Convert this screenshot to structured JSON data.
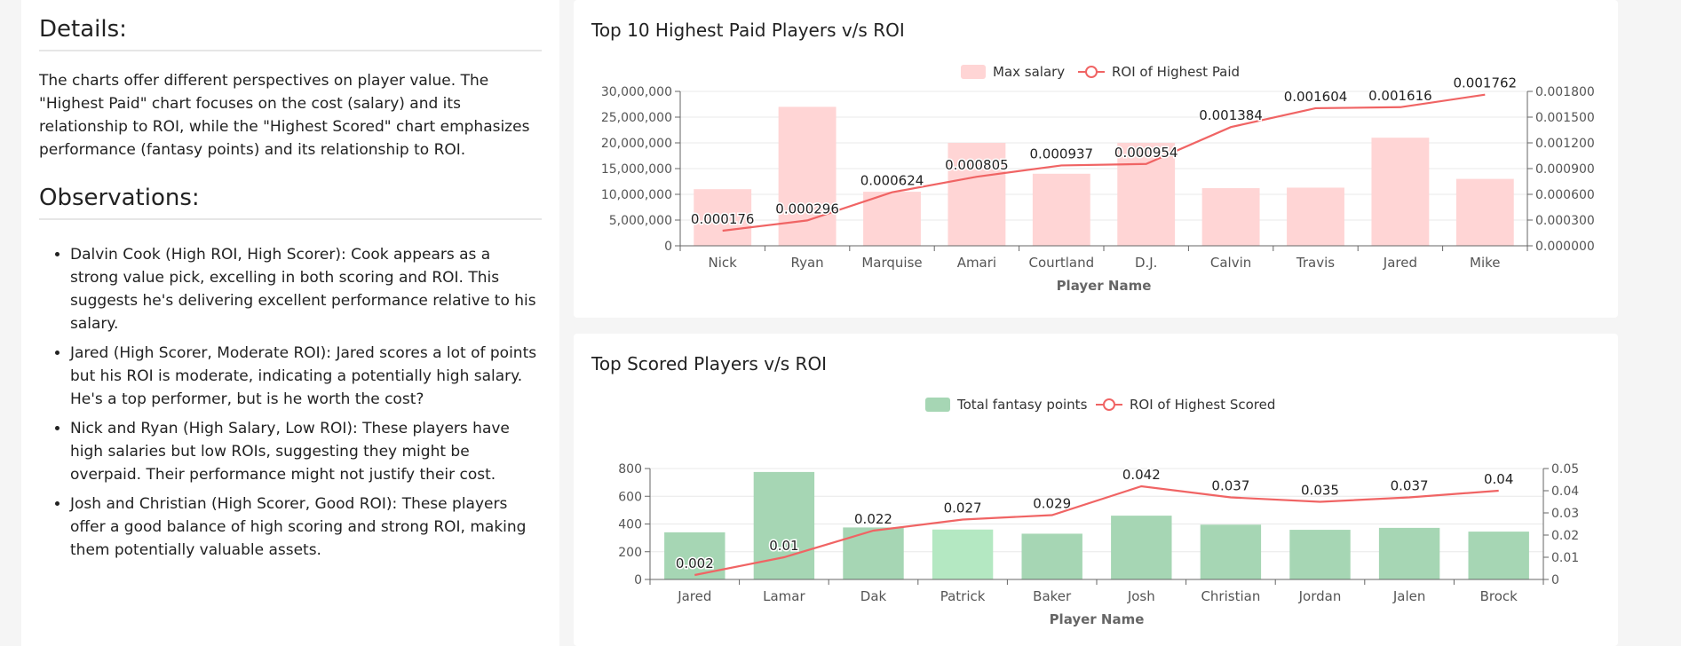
{
  "details": {
    "title": "Details:",
    "text": "The charts offer different perspectives on player value. The \"Highest Paid\" chart focuses on the cost (salary) and its relationship to ROI, while the \"Highest Scored\" chart emphasizes performance (fantasy points) and its relationship to ROI."
  },
  "observations": {
    "title": "Observations:",
    "items": [
      "Dalvin Cook (High ROI, High Scorer): Cook appears as a strong value pick, excelling in both scoring and ROI. This suggests he's delivering excellent performance relative to his salary.",
      "Jared (High Scorer, Moderate ROI): Jared scores a lot of points but his ROI is moderate, indicating a potentially high salary. He's a top performer, but is he worth the cost?",
      "Nick and Ryan (High Salary, Low ROI): These players have high salaries but low ROIs, suggesting they might be overpaid. Their performance might not justify their cost.",
      "Josh and Christian (High Scorer, Good ROI): These players offer a good balance of high scoring and strong ROI, making them potentially valuable assets."
    ]
  },
  "colors": {
    "salary_bar": "#ffd5d5",
    "points_bar": "#a6d6b4",
    "points_bar_highlight": "#b4e8c2",
    "roi_line": "#f06464"
  },
  "chart_data": [
    {
      "type": "bar",
      "title": "Top 10 Highest Paid Players v/s ROI",
      "xlabel": "Player Name",
      "categories": [
        "Nick",
        "Ryan",
        "Marquise",
        "Amari",
        "Courtland",
        "D.J.",
        "Calvin",
        "Travis",
        "Jared",
        "Mike"
      ],
      "series": [
        {
          "name": "Max salary",
          "kind": "bar",
          "axis": "left",
          "values": [
            11000000,
            27000000,
            10500000,
            20000000,
            14000000,
            20000000,
            11200000,
            11300000,
            21000000,
            13000000
          ]
        },
        {
          "name": "ROI of Highest Paid",
          "kind": "line",
          "axis": "right",
          "values": [
            0.000176,
            0.000296,
            0.000624,
            0.000805,
            0.000937,
            0.000954,
            0.001384,
            0.001604,
            0.001616,
            0.001762
          ],
          "labels": [
            "0.000176",
            "0.000296",
            "0.000624",
            "0.000805",
            "0.000937",
            "0.000954",
            "0.001384",
            "0.001604",
            "0.001616",
            "0.001762"
          ]
        }
      ],
      "ylim": [
        0,
        30000000
      ],
      "yticks": [
        "0",
        "5,000,000",
        "10,000,000",
        "15,000,000",
        "20,000,000",
        "25,000,000",
        "30,000,000"
      ],
      "y2lim": [
        0,
        0.0018
      ],
      "y2ticks": [
        "0.000000",
        "0.000300",
        "0.000600",
        "0.000900",
        "0.001200",
        "0.001500",
        "0.001800"
      ],
      "legend": "top-center",
      "grid": true
    },
    {
      "type": "bar",
      "title": "Top Scored Players v/s ROI",
      "xlabel": "Player Name",
      "categories": [
        "Jared",
        "Lamar",
        "Dak",
        "Patrick",
        "Baker",
        "Josh",
        "Christian",
        "Jordan",
        "Jalen",
        "Brock"
      ],
      "series": [
        {
          "name": "Total fantasy points",
          "kind": "bar",
          "axis": "left",
          "values": [
            340,
            775,
            375,
            360,
            330,
            460,
            395,
            358,
            372,
            345
          ]
        },
        {
          "name": "ROI of Highest Scored",
          "kind": "line",
          "axis": "right",
          "values": [
            0.002,
            0.01,
            0.022,
            0.027,
            0.029,
            0.042,
            0.037,
            0.035,
            0.037,
            0.04
          ],
          "labels": [
            "0.002",
            "0.01",
            "0.022",
            "0.027",
            "0.029",
            "0.042",
            "0.037",
            "0.035",
            "0.037",
            "0.04"
          ]
        }
      ],
      "ylim": [
        0,
        800
      ],
      "yticks": [
        "0",
        "200",
        "400",
        "600",
        "800"
      ],
      "y2lim": [
        0,
        0.05
      ],
      "y2ticks": [
        "0",
        "0.01",
        "0.02",
        "0.03",
        "0.04",
        "0.05"
      ],
      "legend": "top-center",
      "grid": true
    }
  ]
}
